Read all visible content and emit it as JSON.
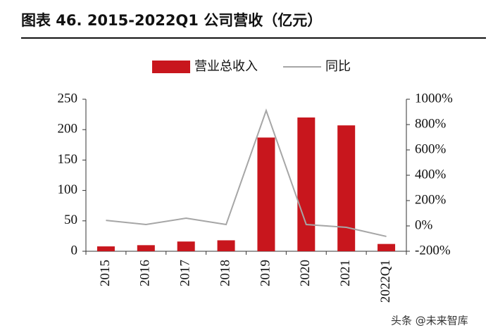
{
  "chart_data": {
    "type": "bar",
    "title": "图表 46. 2015-2022Q1 公司营收（亿元）",
    "categories": [
      "2015",
      "2016",
      "2017",
      "2018",
      "2019",
      "2020",
      "2021",
      "2022Q1"
    ],
    "series": [
      {
        "name": "营业总收入",
        "type": "bar",
        "color": "#c8161d",
        "values": [
          8,
          10,
          16,
          18,
          187,
          220,
          207,
          12
        ]
      },
      {
        "name": "同比",
        "type": "line",
        "axis": "y2",
        "color": "#a6a6a6",
        "values": [
          44,
          11,
          61,
          11,
          911,
          11,
          -11,
          -83
        ]
      }
    ],
    "ylim": [
      0,
      250
    ],
    "yticks": [
      0,
      50,
      100,
      150,
      200,
      250
    ],
    "y2lim": [
      -200,
      1000
    ],
    "y2ticks": [
      {
        "value": -200,
        "label": "-200%"
      },
      {
        "value": 0,
        "label": "0%"
      },
      {
        "value": 200,
        "label": "200%"
      },
      {
        "value": 400,
        "label": "400%"
      },
      {
        "value": 600,
        "label": "600%"
      },
      {
        "value": 800,
        "label": "800%"
      },
      {
        "value": 1000,
        "label": "1000%"
      }
    ],
    "grid": false,
    "legend": "top"
  },
  "watermark": "头条 @未来智库"
}
